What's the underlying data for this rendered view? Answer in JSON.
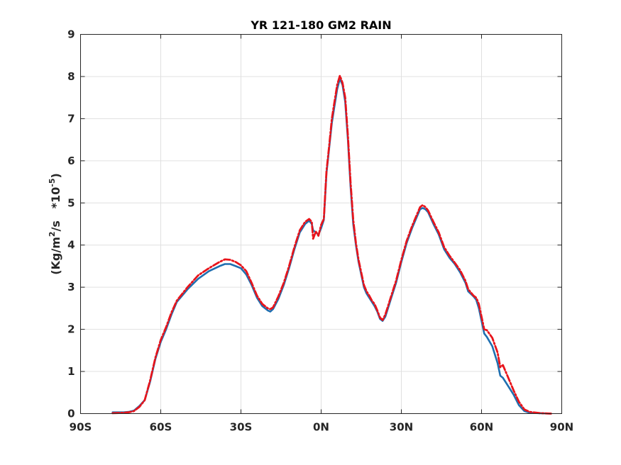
{
  "chart_data": {
    "type": "line",
    "title": "YR 121-180 GM2 RAIN",
    "xlabel": "",
    "ylabel": {
      "main": "(Kg/m",
      "sup1": "2",
      "mid": "/s   *10",
      "sup2": "-5",
      "end": ")"
    },
    "xlim": [
      -90,
      90
    ],
    "ylim": [
      0,
      9
    ],
    "x_ticks": [
      -90,
      -60,
      -30,
      0,
      30,
      60,
      90
    ],
    "x_tick_labels": [
      "90S",
      "60S",
      "30S",
      "0N",
      "30N",
      "60N",
      "90N"
    ],
    "y_ticks": [
      0,
      1,
      2,
      3,
      4,
      5,
      6,
      7,
      8,
      9
    ],
    "y_tick_labels": [
      "0",
      "1",
      "2",
      "3",
      "4",
      "5",
      "6",
      "7",
      "8",
      "9"
    ],
    "grid": true,
    "series": [
      {
        "color": "#1f6fb0",
        "style": "solid",
        "points": [
          [
            -78,
            0.03
          ],
          [
            -74,
            0.03
          ],
          [
            -72,
            0.04
          ],
          [
            -70,
            0.07
          ],
          [
            -68,
            0.18
          ],
          [
            -66,
            0.32
          ],
          [
            -64,
            0.75
          ],
          [
            -62,
            1.3
          ],
          [
            -60,
            1.7
          ],
          [
            -58,
            2.0
          ],
          [
            -56,
            2.35
          ],
          [
            -54,
            2.65
          ],
          [
            -50,
            2.95
          ],
          [
            -46,
            3.2
          ],
          [
            -42,
            3.38
          ],
          [
            -38,
            3.5
          ],
          [
            -36,
            3.55
          ],
          [
            -34,
            3.55
          ],
          [
            -32,
            3.5
          ],
          [
            -30,
            3.45
          ],
          [
            -28,
            3.3
          ],
          [
            -26,
            3.05
          ],
          [
            -24,
            2.75
          ],
          [
            -22,
            2.55
          ],
          [
            -20,
            2.45
          ],
          [
            -19,
            2.42
          ],
          [
            -18,
            2.48
          ],
          [
            -16,
            2.72
          ],
          [
            -14,
            3.05
          ],
          [
            -12,
            3.45
          ],
          [
            -10,
            3.9
          ],
          [
            -8,
            4.3
          ],
          [
            -6,
            4.5
          ],
          [
            -4.5,
            4.58
          ],
          [
            -3.5,
            4.5
          ],
          [
            -3,
            4.35
          ],
          [
            -2,
            4.3
          ],
          [
            -1,
            4.25
          ],
          [
            0,
            4.4
          ],
          [
            1,
            4.6
          ],
          [
            2,
            5.7
          ],
          [
            3,
            6.3
          ],
          [
            4,
            6.9
          ],
          [
            5,
            7.3
          ],
          [
            6,
            7.7
          ],
          [
            7,
            7.95
          ],
          [
            8,
            7.8
          ],
          [
            9,
            7.4
          ],
          [
            10,
            6.5
          ],
          [
            11,
            5.4
          ],
          [
            12,
            4.5
          ],
          [
            13,
            4.0
          ],
          [
            14,
            3.6
          ],
          [
            15,
            3.3
          ],
          [
            16,
            3.0
          ],
          [
            17,
            2.85
          ],
          [
            18,
            2.75
          ],
          [
            19,
            2.65
          ],
          [
            20,
            2.55
          ],
          [
            21,
            2.42
          ],
          [
            22,
            2.25
          ],
          [
            23,
            2.2
          ],
          [
            24,
            2.3
          ],
          [
            25,
            2.5
          ],
          [
            26,
            2.7
          ],
          [
            28,
            3.1
          ],
          [
            30,
            3.6
          ],
          [
            32,
            4.05
          ],
          [
            34,
            4.4
          ],
          [
            36,
            4.7
          ],
          [
            37,
            4.85
          ],
          [
            38,
            4.88
          ],
          [
            39,
            4.85
          ],
          [
            40,
            4.78
          ],
          [
            42,
            4.5
          ],
          [
            44,
            4.25
          ],
          [
            46,
            3.9
          ],
          [
            48,
            3.7
          ],
          [
            50,
            3.55
          ],
          [
            52,
            3.35
          ],
          [
            54,
            3.1
          ],
          [
            55,
            2.9
          ],
          [
            57,
            2.78
          ],
          [
            58,
            2.7
          ],
          [
            59,
            2.5
          ],
          [
            60,
            2.2
          ],
          [
            61,
            1.9
          ],
          [
            62,
            1.82
          ],
          [
            64,
            1.6
          ],
          [
            66,
            1.2
          ],
          [
            67,
            0.9
          ],
          [
            68,
            0.85
          ],
          [
            70,
            0.65
          ],
          [
            72,
            0.45
          ],
          [
            74,
            0.2
          ],
          [
            76,
            0.06
          ],
          [
            78,
            0.02
          ],
          [
            82,
            0.01
          ],
          [
            86,
            0.0
          ]
        ]
      },
      {
        "color": "#e8141b",
        "style": "dashdot",
        "points": [
          [
            -78,
            0.01
          ],
          [
            -74,
            0.02
          ],
          [
            -72,
            0.03
          ],
          [
            -70,
            0.06
          ],
          [
            -68,
            0.16
          ],
          [
            -66,
            0.32
          ],
          [
            -64,
            0.78
          ],
          [
            -62,
            1.33
          ],
          [
            -60,
            1.75
          ],
          [
            -58,
            2.05
          ],
          [
            -56,
            2.4
          ],
          [
            -54,
            2.68
          ],
          [
            -50,
            3.0
          ],
          [
            -46,
            3.28
          ],
          [
            -42,
            3.45
          ],
          [
            -38,
            3.6
          ],
          [
            -36,
            3.66
          ],
          [
            -34,
            3.65
          ],
          [
            -32,
            3.6
          ],
          [
            -30,
            3.52
          ],
          [
            -28,
            3.38
          ],
          [
            -26,
            3.1
          ],
          [
            -24,
            2.8
          ],
          [
            -22,
            2.6
          ],
          [
            -20,
            2.5
          ],
          [
            -19,
            2.48
          ],
          [
            -18,
            2.52
          ],
          [
            -16,
            2.78
          ],
          [
            -14,
            3.1
          ],
          [
            -12,
            3.5
          ],
          [
            -10,
            3.95
          ],
          [
            -8,
            4.35
          ],
          [
            -6,
            4.55
          ],
          [
            -4.5,
            4.62
          ],
          [
            -3.5,
            4.55
          ],
          [
            -3,
            4.15
          ],
          [
            -2,
            4.32
          ],
          [
            -1,
            4.22
          ],
          [
            0,
            4.48
          ],
          [
            1,
            4.62
          ],
          [
            2,
            5.75
          ],
          [
            3,
            6.35
          ],
          [
            4,
            7.0
          ],
          [
            5,
            7.4
          ],
          [
            6,
            7.8
          ],
          [
            7,
            8.02
          ],
          [
            8,
            7.85
          ],
          [
            9,
            7.5
          ],
          [
            10,
            6.6
          ],
          [
            11,
            5.5
          ],
          [
            12,
            4.6
          ],
          [
            13,
            4.05
          ],
          [
            14,
            3.65
          ],
          [
            15,
            3.35
          ],
          [
            16,
            3.05
          ],
          [
            17,
            2.9
          ],
          [
            18,
            2.8
          ],
          [
            19,
            2.68
          ],
          [
            20,
            2.6
          ],
          [
            21,
            2.45
          ],
          [
            22,
            2.28
          ],
          [
            23,
            2.22
          ],
          [
            24,
            2.35
          ],
          [
            25,
            2.55
          ],
          [
            26,
            2.75
          ],
          [
            28,
            3.15
          ],
          [
            30,
            3.65
          ],
          [
            32,
            4.1
          ],
          [
            34,
            4.45
          ],
          [
            36,
            4.75
          ],
          [
            37,
            4.9
          ],
          [
            38,
            4.95
          ],
          [
            39,
            4.9
          ],
          [
            40,
            4.82
          ],
          [
            42,
            4.55
          ],
          [
            44,
            4.3
          ],
          [
            46,
            3.95
          ],
          [
            48,
            3.75
          ],
          [
            50,
            3.58
          ],
          [
            52,
            3.4
          ],
          [
            54,
            3.15
          ],
          [
            55,
            2.95
          ],
          [
            57,
            2.8
          ],
          [
            58,
            2.75
          ],
          [
            59,
            2.6
          ],
          [
            60,
            2.3
          ],
          [
            61,
            2.0
          ],
          [
            62,
            1.98
          ],
          [
            64,
            1.8
          ],
          [
            66,
            1.45
          ],
          [
            67,
            1.1
          ],
          [
            68,
            1.15
          ],
          [
            70,
            0.85
          ],
          [
            72,
            0.55
          ],
          [
            74,
            0.28
          ],
          [
            76,
            0.1
          ],
          [
            78,
            0.04
          ],
          [
            82,
            0.01
          ],
          [
            86,
            0.0
          ]
        ]
      }
    ]
  }
}
